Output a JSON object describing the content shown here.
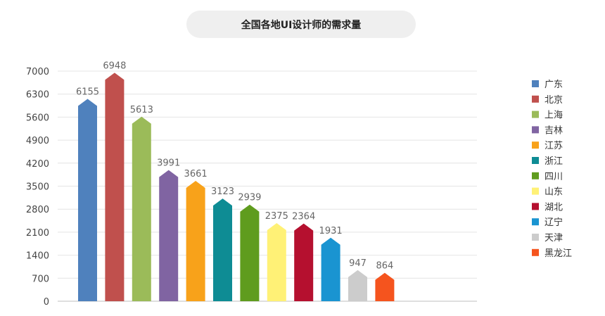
{
  "chart_data": {
    "type": "bar",
    "title": "全国各地UI设计师的需求量",
    "xlabel": "",
    "ylabel": "",
    "ylim": [
      0,
      7000
    ],
    "yticks": [
      0,
      700,
      1400,
      2100,
      2800,
      3500,
      4200,
      4900,
      5600,
      6300,
      7000
    ],
    "grid": true,
    "legend_position": "right",
    "categories": [
      "广东",
      "北京",
      "上海",
      "吉林",
      "江苏",
      "浙江",
      "四川",
      "山东",
      "湖北",
      "辽宁",
      "天津",
      "黑龙江"
    ],
    "values": [
      6155,
      6948,
      5613,
      3991,
      3661,
      3123,
      2939,
      2375,
      2364,
      1931,
      947,
      864
    ],
    "colors": [
      "#4f81bd",
      "#c0504d",
      "#9bbb59",
      "#8064a2",
      "#f8a21a",
      "#0e8c94",
      "#5f9c1e",
      "#fff176",
      "#b5102f",
      "#1a94d1",
      "#cccccc",
      "#f5541e"
    ]
  }
}
